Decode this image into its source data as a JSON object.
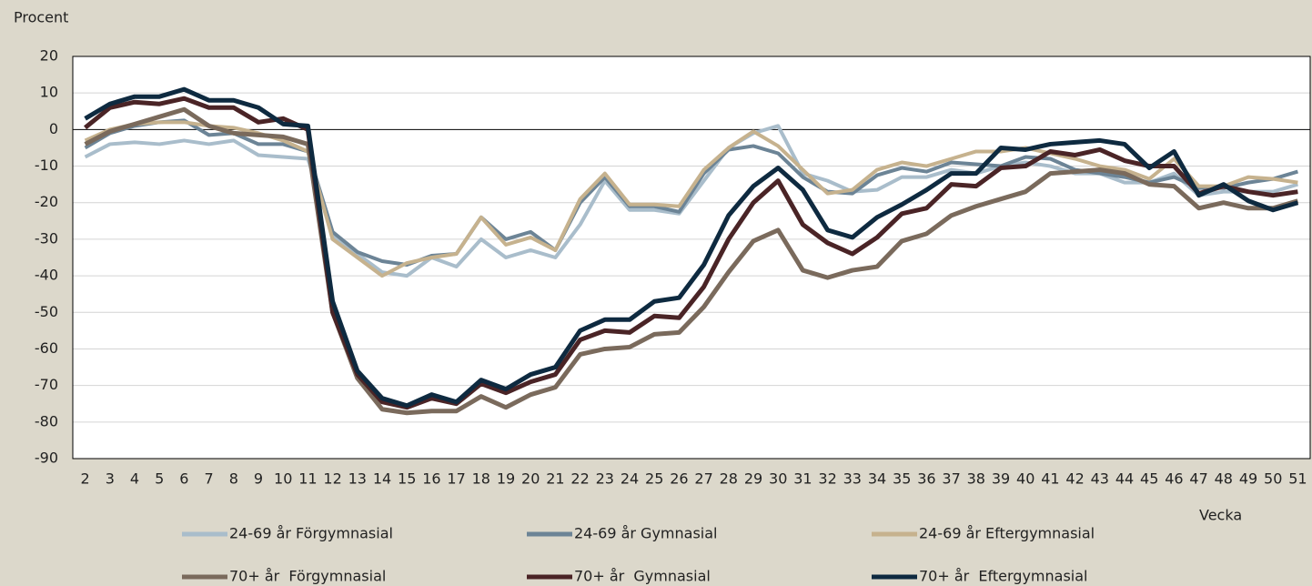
{
  "chart_data": {
    "type": "line",
    "y_label": "Procent",
    "x_label": "Vecka",
    "categories": [
      "2",
      "3",
      "4",
      "5",
      "6",
      "7",
      "8",
      "9",
      "10",
      "11",
      "12",
      "13",
      "14",
      "15",
      "16",
      "17",
      "18",
      "19",
      "20",
      "21",
      "22",
      "23",
      "24",
      "25",
      "26",
      "27",
      "28",
      "29",
      "30",
      "31",
      "32",
      "33",
      "34",
      "35",
      "36",
      "37",
      "38",
      "39",
      "40",
      "41",
      "42",
      "43",
      "44",
      "45",
      "46",
      "47",
      "48",
      "49",
      "50",
      "51"
    ],
    "ylim": [
      -90,
      20
    ],
    "yticks": [
      20,
      10,
      0,
      -10,
      -20,
      -30,
      -40,
      -50,
      -60,
      -70,
      -80,
      -90
    ],
    "grid": true,
    "series": [
      {
        "name": "24-69 år Förgymnasial",
        "color": "#a9bdcb",
        "values": [
          -7.5,
          -4,
          -3.5,
          -4,
          -3,
          -4,
          -3,
          -7,
          -7.5,
          -8,
          -29,
          -34,
          -39,
          -40,
          -35,
          -37.5,
          -30,
          -35,
          -33,
          -35,
          -26,
          -14,
          -22,
          -22,
          -23,
          -14,
          -5,
          -1,
          1,
          -12,
          -14,
          -17,
          -16.5,
          -13,
          -13,
          -11,
          -12,
          -10,
          -9,
          -10,
          -12,
          -12,
          -14.5,
          -14.5,
          -12,
          -18,
          -17,
          -17,
          -17,
          -15
        ]
      },
      {
        "name": "24-69 år Gymnasial",
        "color": "#6c8496",
        "values": [
          -5,
          -1,
          1,
          2,
          2.5,
          -1.5,
          -1,
          -4,
          -4,
          -6,
          -28,
          -33.5,
          -36,
          -37,
          -34.5,
          -34,
          -24,
          -30,
          -28,
          -33,
          -20,
          -13,
          -21,
          -21,
          -22.5,
          -12,
          -5.5,
          -4.5,
          -6.5,
          -13,
          -17,
          -17.5,
          -12.5,
          -10.5,
          -11.5,
          -9,
          -9.5,
          -10,
          -7.5,
          -8,
          -11,
          -12,
          -13,
          -14.5,
          -13,
          -16,
          -16,
          -14.5,
          -13.5,
          -11.5
        ]
      },
      {
        "name": "24-69 år Eftergymnasial",
        "color": "#c6b28e",
        "values": [
          -3,
          0,
          1.5,
          2,
          2,
          1,
          0.5,
          -1,
          -3,
          -6,
          -30,
          -35,
          -40,
          -36.5,
          -35,
          -34,
          -24,
          -31.5,
          -29.5,
          -33,
          -19,
          -12,
          -20.5,
          -20.5,
          -21,
          -11,
          -5,
          -0.5,
          -4.5,
          -11,
          -17.5,
          -16.5,
          -11,
          -9,
          -10,
          -8,
          -6,
          -6,
          -5,
          -6.5,
          -8,
          -10,
          -11,
          -13.5,
          -8,
          -15.5,
          -15.5,
          -13,
          -13.5,
          -14.5
        ]
      },
      {
        "name": "70+ år  Förgymnasial",
        "color": "#7a6a5c",
        "values": [
          -4,
          -0.5,
          1.5,
          3.5,
          5.5,
          1,
          -1,
          -1.5,
          -2,
          -4,
          -50,
          -68,
          -76.5,
          -77.5,
          -77,
          -77,
          -73,
          -76,
          -72.5,
          -70.5,
          -61.5,
          -60,
          -59.5,
          -56,
          -55.5,
          -48.5,
          -39,
          -30.5,
          -27.5,
          -38.5,
          -40.5,
          -38.5,
          -37.5,
          -30.5,
          -28.5,
          -23.5,
          -21,
          -19,
          -17,
          -12,
          -11.5,
          -11,
          -12,
          -15,
          -15.5,
          -21.5,
          -20,
          -21.5,
          -21.5,
          -19.5
        ]
      },
      {
        "name": "70+ år  Gymnasial",
        "color": "#4a2426",
        "values": [
          0.5,
          6,
          7.5,
          7,
          8.5,
          6,
          6,
          2,
          3,
          0,
          -50,
          -67,
          -74.5,
          -76,
          -73.5,
          -75,
          -69.5,
          -72,
          -69,
          -67,
          -57.5,
          -55,
          -55.5,
          -51,
          -51.5,
          -43,
          -30,
          -20,
          -14,
          -26,
          -31,
          -34,
          -29.5,
          -23,
          -21.5,
          -15,
          -15.5,
          -10.5,
          -10,
          -6,
          -7,
          -5.5,
          -8.5,
          -10,
          -10,
          -17.5,
          -15.5,
          -17,
          -18,
          -17
        ]
      },
      {
        "name": "70+ år  Eftergymnasial",
        "color": "#0e2a40",
        "values": [
          3,
          7,
          9,
          9,
          11,
          8,
          8,
          6,
          1.5,
          1,
          -47,
          -66,
          -73.5,
          -75.5,
          -72.5,
          -74.5,
          -68.5,
          -71,
          -67,
          -65,
          -55,
          -52,
          -52,
          -47,
          -46,
          -37,
          -23.5,
          -15.5,
          -10.5,
          -16.5,
          -27.5,
          -29.5,
          -24,
          -20.5,
          -16.5,
          -12,
          -12,
          -5,
          -5.5,
          -4,
          -3.5,
          -3,
          -4,
          -10.5,
          -6,
          -18,
          -15,
          -19.5,
          -22,
          -20
        ]
      }
    ]
  }
}
